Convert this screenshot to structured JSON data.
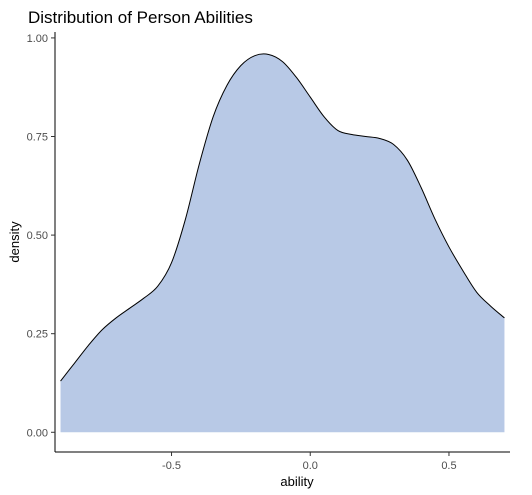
{
  "chart_data": {
    "type": "area",
    "title": "Distribution of Person Abilities",
    "xlabel": "ability",
    "ylabel": "density",
    "xlim": [
      -0.92,
      0.72
    ],
    "ylim": [
      -0.05,
      1.015
    ],
    "x_ticks": [
      -0.5,
      0.0,
      0.5
    ],
    "x_tick_labels": [
      "-0.5",
      "0.0",
      "0.5"
    ],
    "y_ticks": [
      0.0,
      0.25,
      0.5,
      0.75,
      1.0
    ],
    "y_tick_labels": [
      "0.00",
      "0.25",
      "0.50",
      "0.75",
      "1.00"
    ],
    "grid": false,
    "legend": "none",
    "fill_color": "#b8c9e6",
    "line_color": "#000000",
    "x": [
      -0.9,
      -0.85,
      -0.8,
      -0.75,
      -0.7,
      -0.65,
      -0.6,
      -0.55,
      -0.5,
      -0.45,
      -0.4,
      -0.35,
      -0.3,
      -0.25,
      -0.2,
      -0.15,
      -0.1,
      -0.05,
      0.0,
      0.05,
      0.1,
      0.15,
      0.2,
      0.25,
      0.3,
      0.35,
      0.4,
      0.45,
      0.5,
      0.55,
      0.6,
      0.65,
      0.7
    ],
    "y": [
      0.13,
      0.175,
      0.22,
      0.26,
      0.29,
      0.315,
      0.34,
      0.37,
      0.43,
      0.54,
      0.68,
      0.8,
      0.88,
      0.93,
      0.955,
      0.958,
      0.94,
      0.9,
      0.85,
      0.8,
      0.765,
      0.755,
      0.75,
      0.745,
      0.73,
      0.69,
      0.62,
      0.54,
      0.47,
      0.41,
      0.355,
      0.32,
      0.29
    ]
  }
}
